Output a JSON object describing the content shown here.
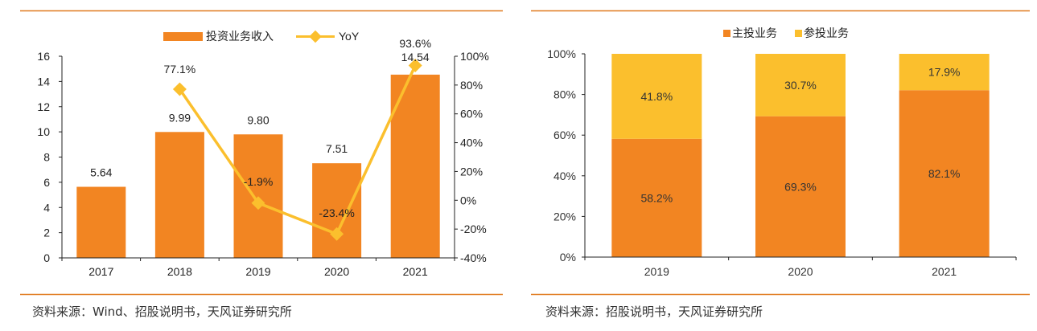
{
  "colors": {
    "bar": "#f28522",
    "yoy": "#fbbf2d",
    "main_business": "#f28522",
    "participation": "#fbbf2d",
    "rule": "#e07a1f",
    "axis": "#222222"
  },
  "chart_data": [
    {
      "type": "bar+line",
      "title": "",
      "categories": [
        "2017",
        "2018",
        "2019",
        "2020",
        "2021"
      ],
      "series": [
        {
          "name": "投资业务收入",
          "type": "bar",
          "axis": "left",
          "values": [
            5.64,
            9.99,
            9.8,
            7.51,
            14.54
          ],
          "labels": [
            "5.64",
            "9.99",
            "9.80",
            "7.51",
            "14.54"
          ]
        },
        {
          "name": "YoY",
          "type": "line",
          "axis": "right",
          "values": [
            null,
            77.1,
            -1.9,
            -23.4,
            93.6
          ],
          "labels": [
            "",
            "77.1%",
            "-1.9%",
            "-23.4%",
            "93.6%"
          ]
        }
      ],
      "y_left": {
        "min": 0,
        "max": 16,
        "ticks": [
          "0",
          "2",
          "4",
          "6",
          "8",
          "10",
          "12",
          "14",
          "16"
        ]
      },
      "y_right": {
        "min": -40,
        "max": 100,
        "ticks": [
          "-40%",
          "-20%",
          "0%",
          "20%",
          "40%",
          "60%",
          "80%",
          "100%"
        ]
      },
      "grid": false,
      "legend": "top-center"
    },
    {
      "type": "stacked-bar-100",
      "title": "",
      "categories": [
        "2019",
        "2020",
        "2021"
      ],
      "series": [
        {
          "name": "主投业务",
          "values": [
            58.2,
            69.3,
            82.1
          ],
          "labels": [
            "58.2%",
            "69.3%",
            "82.1%"
          ]
        },
        {
          "name": "参投业务",
          "values": [
            41.8,
            30.7,
            17.9
          ],
          "labels": [
            "41.8%",
            "30.7%",
            "17.9%"
          ]
        }
      ],
      "y": {
        "min": 0,
        "max": 100,
        "ticks": [
          "0%",
          "20%",
          "40%",
          "60%",
          "80%",
          "100%"
        ]
      },
      "grid": false,
      "legend": "top-center"
    }
  ],
  "sources": {
    "left": "资料来源：Wind、招股说明书，天风证券研究所",
    "right": "资料来源：招股说明书，天风证券研究所"
  }
}
